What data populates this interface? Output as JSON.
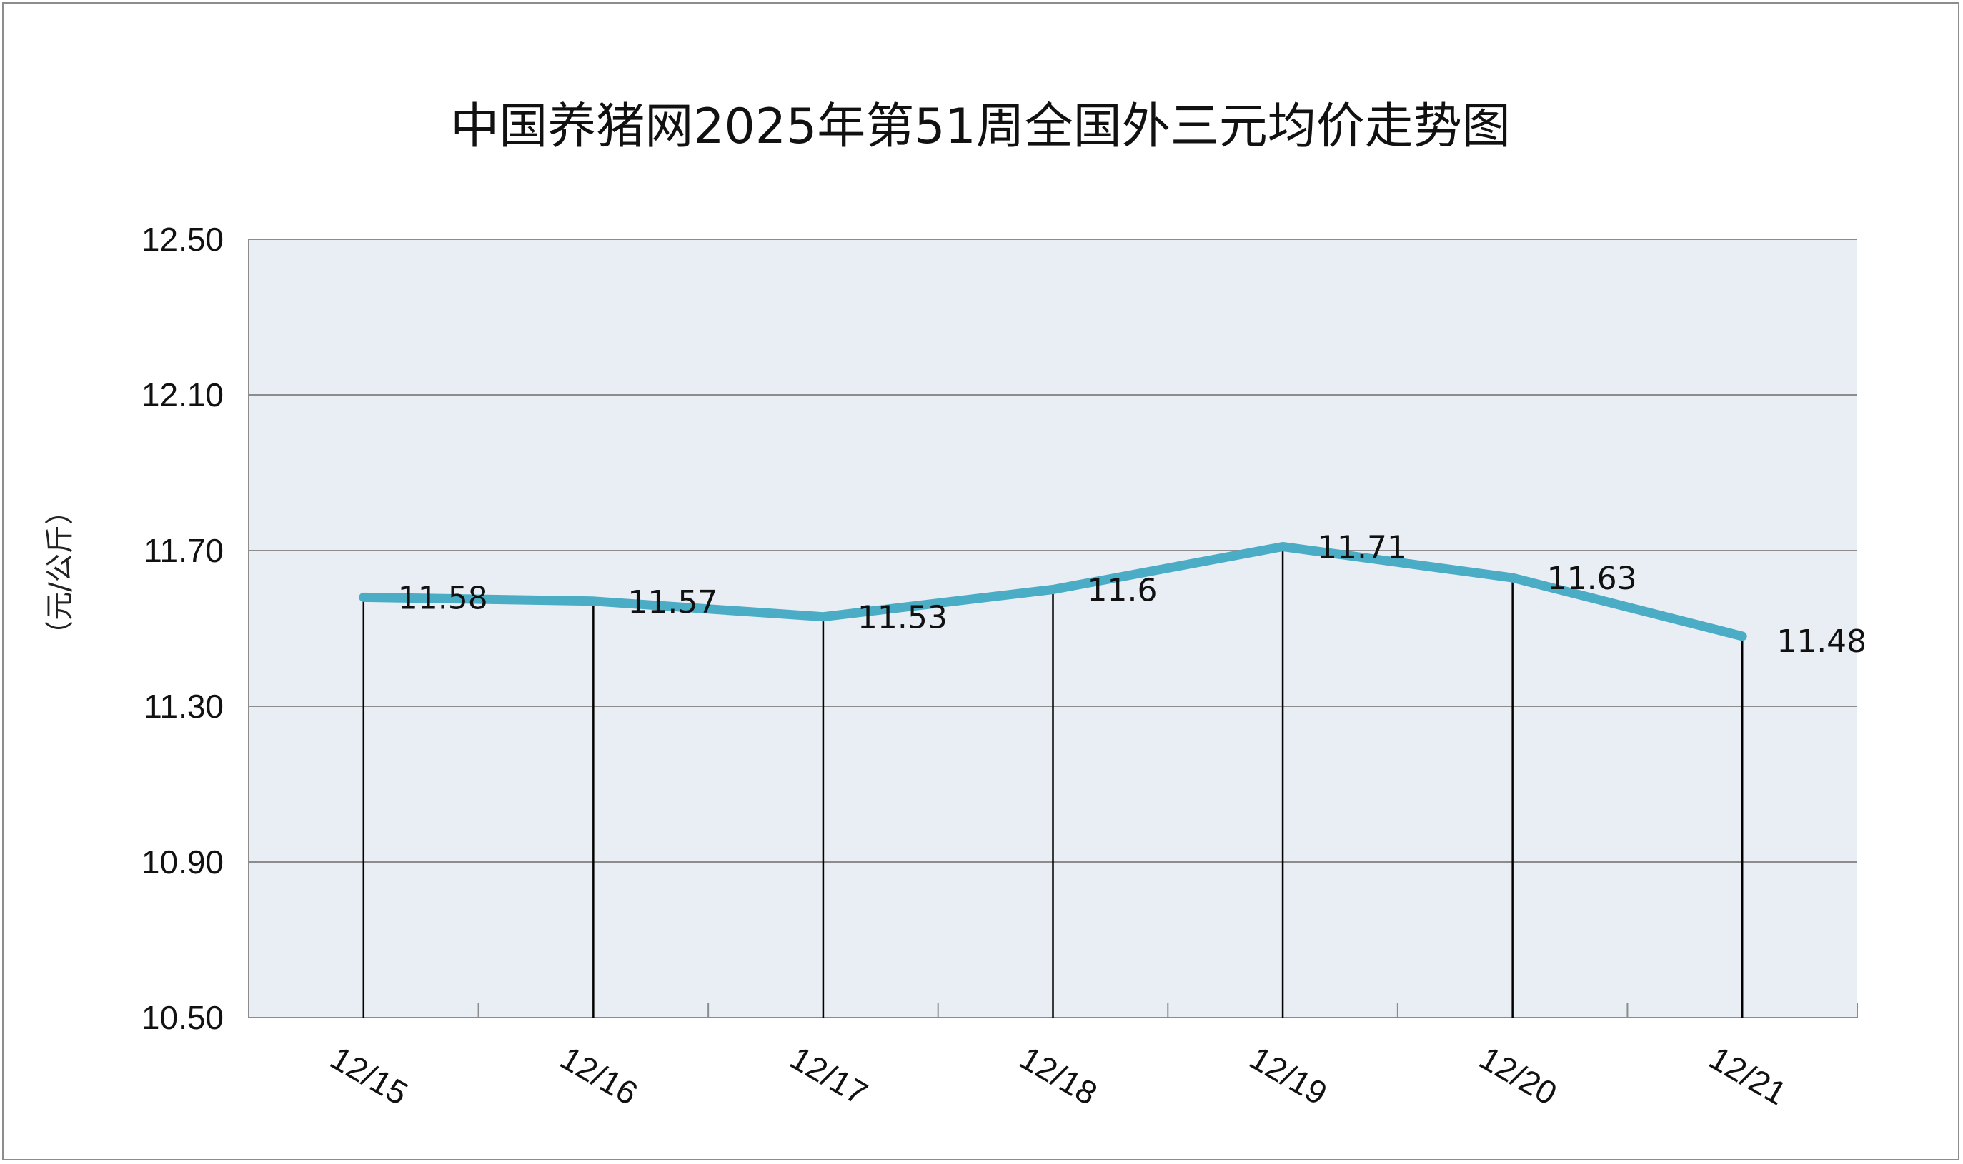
{
  "chart_data": {
    "type": "line",
    "title": "中国养猪网2025年第51周全国外三元均价走势图",
    "xlabel": "",
    "ylabel": "（元/公斤）",
    "categories": [
      "12/15",
      "12/16",
      "12/17",
      "12/18",
      "12/19",
      "12/20",
      "12/21"
    ],
    "series": [
      {
        "values": [
          11.58,
          11.57,
          11.53,
          11.6,
          11.71,
          11.63,
          11.48
        ],
        "labels": [
          "11.58",
          "11.57",
          "11.53",
          "11.6",
          "11.71",
          "11.63",
          "11.48"
        ]
      }
    ],
    "ylim": [
      10.5,
      12.5
    ],
    "yticks": [
      "12.50",
      "12.10",
      "11.70",
      "11.30",
      "10.90",
      "10.50"
    ],
    "grid": true,
    "legend": "none",
    "drop_lines": true,
    "colors": {
      "line": "#4bacc6",
      "plot_background": "#e8eef3",
      "grid": "#8c8c8c",
      "drop_line": "#000000",
      "frame": "#8c8c8c"
    }
  }
}
